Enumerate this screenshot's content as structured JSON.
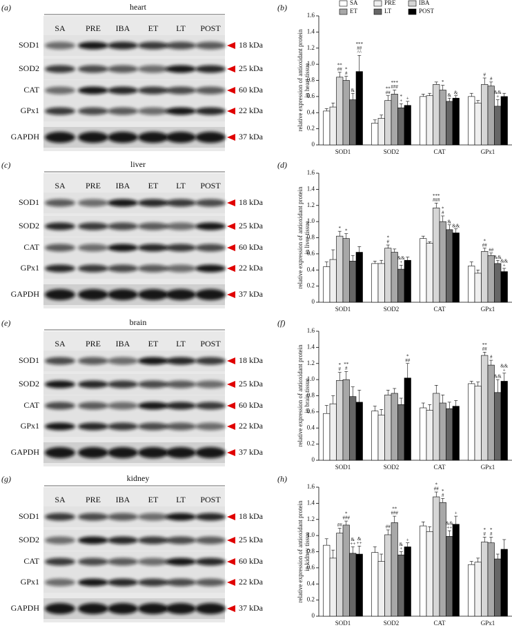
{
  "blots": [
    {
      "label": "(a)",
      "tissue": "heart"
    },
    {
      "label": "(c)",
      "tissue": "liver"
    },
    {
      "label": "(e)",
      "tissue": "brain"
    },
    {
      "label": "(g)",
      "tissue": "kidney"
    }
  ],
  "lanes": [
    "SA",
    "PRE",
    "IBA",
    "ET",
    "LT",
    "POST"
  ],
  "proteins": [
    {
      "name": "SOD1",
      "size": "18 kDa"
    },
    {
      "name": "SOD2",
      "size": "25 kDa"
    },
    {
      "name": "CAT",
      "size": "60 kDa"
    },
    {
      "name": "GPx1",
      "size": "22 kDa"
    },
    {
      "name": "GAPDH",
      "size": "37 kDa"
    }
  ],
  "chart_data": [
    {
      "type": "bar",
      "label": "(b)",
      "ylabel": [
        "relative expression of antioxidant protein",
        "in heart tissue"
      ],
      "categories": [
        "SOD1",
        "SOD2",
        "CAT",
        "GPx1"
      ],
      "ylim": [
        0,
        1.6
      ],
      "yticks": [
        0,
        0.2,
        0.4,
        0.6,
        0.8,
        {
          "value": 1,
          "label": "1.0"
        },
        1.2,
        1.4,
        1.6
      ],
      "legend": true,
      "series": [
        {
          "name": "SA",
          "color": "#ffffff",
          "values": [
            0.42,
            0.27,
            0.6,
            0.6
          ],
          "errors": [
            0.03,
            0.04,
            0.03,
            0.04
          ],
          "annotations": [
            null,
            null,
            null,
            null
          ]
        },
        {
          "name": "PRE",
          "color": "#efefef",
          "values": [
            0.47,
            0.33,
            0.61,
            0.52
          ],
          "errors": [
            0.05,
            0.04,
            0.03,
            0.03
          ],
          "annotations": [
            null,
            null,
            null,
            null
          ]
        },
        {
          "name": "IBA",
          "color": "#d6d6d6",
          "values": [
            0.84,
            0.55,
            0.75,
            0.75
          ],
          "errors": [
            0.06,
            0.06,
            0.03,
            0.08
          ],
          "annotations": [
            [
              "**",
              "##"
            ],
            [
              "**",
              "##"
            ],
            null,
            [
              "#"
            ]
          ]
        },
        {
          "name": "ET",
          "color": "#a8a8a8",
          "values": [
            0.8,
            0.63,
            0.68,
            0.73
          ],
          "errors": [
            0.05,
            0.05,
            0.06,
            0.05
          ],
          "annotations": [
            [
              "*",
              "#"
            ],
            [
              "***",
              "###"
            ],
            [
              "*"
            ],
            [
              "#"
            ]
          ]
        },
        {
          "name": "LT",
          "color": "#666666",
          "values": [
            0.56,
            0.46,
            0.54,
            0.48
          ],
          "errors": [
            0.08,
            0.05,
            0.04,
            0.08
          ],
          "annotations": [
            [
              "&"
            ],
            [
              "*",
              "+"
            ],
            [
              "&"
            ],
            [
              "&&",
              "+"
            ]
          ]
        },
        {
          "name": "POST",
          "color": "#000000",
          "values": [
            0.91,
            0.49,
            0.58,
            0.6
          ],
          "errors": [
            0.2,
            0.05,
            0.03,
            0.04
          ],
          "annotations": [
            [
              "***",
              "##",
              "^^"
            ],
            [
              "+"
            ],
            [
              "&"
            ],
            null
          ]
        }
      ]
    },
    {
      "type": "bar",
      "label": "(d)",
      "ylabel": [
        "relative expression of antioxidant protein",
        "in liver tissue"
      ],
      "categories": [
        "SOD1",
        "SOD2",
        "CAT",
        "GPx1"
      ],
      "ylim": [
        0,
        1.6
      ],
      "yticks": [
        0,
        0.2,
        0.4,
        0.6,
        0.8,
        {
          "value": 1,
          "label": "1.0"
        },
        1.2,
        1.4,
        1.6
      ],
      "legend": false,
      "series": [
        {
          "color": "#ffffff",
          "values": [
            0.44,
            0.48,
            0.79,
            0.45
          ],
          "errors": [
            0.06,
            0.03,
            0.03,
            0.05
          ],
          "annotations": [
            null,
            null,
            null,
            null
          ]
        },
        {
          "color": "#efefef",
          "values": [
            0.53,
            0.48,
            0.73,
            0.36
          ],
          "errors": [
            0.12,
            0.04,
            0.02,
            0.04
          ],
          "annotations": [
            null,
            null,
            null,
            null
          ]
        },
        {
          "color": "#d6d6d6",
          "values": [
            0.82,
            0.67,
            1.17,
            0.63
          ],
          "errors": [
            0.06,
            0.04,
            0.06,
            0.04
          ],
          "annotations": [
            [
              "*"
            ],
            [
              "*",
              "#"
            ],
            [
              "***",
              "###"
            ],
            [
              "*",
              "##"
            ]
          ]
        },
        {
          "color": "#a8a8a8",
          "values": [
            0.79,
            0.62,
            1.0,
            0.58
          ],
          "errors": [
            0.06,
            0.04,
            0.07,
            0.03
          ],
          "annotations": [
            [
              "*"
            ],
            null,
            [
              "*",
              "#"
            ],
            [
              "##"
            ]
          ]
        },
        {
          "color": "#666666",
          "values": [
            0.51,
            0.41,
            0.9,
            0.48
          ],
          "errors": [
            0.07,
            0.05,
            0.06,
            0.04
          ],
          "annotations": [
            null,
            [
              "&&",
              "+"
            ],
            [
              "&"
            ],
            [
              "&&"
            ]
          ]
        },
        {
          "color": "#000000",
          "values": [
            0.62,
            0.52,
            0.86,
            0.38
          ],
          "errors": [
            0.07,
            0.04,
            0.05,
            0.04
          ],
          "annotations": [
            null,
            null,
            [
              "&&"
            ],
            [
              "&&",
              "+"
            ]
          ]
        }
      ]
    },
    {
      "type": "bar",
      "label": "(f)",
      "ylabel": [
        "relative expression of antioxidant protein",
        "in brain tissue"
      ],
      "categories": [
        "SOD1",
        "SOD2",
        "CAT",
        "GPx1"
      ],
      "ylim": [
        0,
        1.6
      ],
      "yticks": [
        0,
        0.2,
        0.4,
        0.6,
        0.8,
        {
          "value": 1,
          "label": "1.0"
        },
        1.2,
        1.4,
        1.6
      ],
      "legend": false,
      "series": [
        {
          "color": "#ffffff",
          "values": [
            0.58,
            0.61,
            0.65,
            0.95
          ],
          "errors": [
            0.1,
            0.06,
            0.06,
            0.03
          ],
          "annotations": [
            null,
            null,
            null,
            null
          ]
        },
        {
          "color": "#efefef",
          "values": [
            0.7,
            0.56,
            0.62,
            0.92
          ],
          "errors": [
            0.1,
            0.07,
            0.07,
            0.05
          ],
          "annotations": [
            null,
            null,
            null,
            null
          ]
        },
        {
          "color": "#d6d6d6",
          "values": [
            0.99,
            0.81,
            0.83,
            1.3
          ],
          "errors": [
            0.1,
            0.06,
            0.1,
            0.04
          ],
          "annotations": [
            [
              "*",
              "#"
            ],
            null,
            null,
            [
              "**",
              "##"
            ]
          ]
        },
        {
          "color": "#a8a8a8",
          "values": [
            1.0,
            0.83,
            0.71,
            1.18
          ],
          "errors": [
            0.1,
            0.06,
            0.1,
            0.06
          ],
          "annotations": [
            [
              "**",
              "#"
            ],
            null,
            null,
            [
              "#"
            ]
          ]
        },
        {
          "color": "#666666",
          "values": [
            0.79,
            0.69,
            0.64,
            0.84
          ],
          "errors": [
            0.12,
            0.08,
            0.08,
            0.16
          ],
          "annotations": [
            null,
            null,
            null,
            [
              "&&"
            ]
          ]
        },
        {
          "color": "#000000",
          "values": [
            0.72,
            1.02,
            0.67,
            0.98
          ],
          "errors": [
            0.15,
            0.18,
            0.07,
            0.1
          ],
          "annotations": [
            null,
            [
              "*",
              "##"
            ],
            null,
            [
              "&&",
              "+"
            ]
          ]
        }
      ]
    },
    {
      "type": "bar",
      "label": "(h)",
      "ylabel": [
        "relative expression of antioxidant protein",
        "in kidney tissue"
      ],
      "categories": [
        "SOD1",
        "SOD2",
        "CAT",
        "GPx1"
      ],
      "ylim": [
        0,
        1.6
      ],
      "yticks": [
        0,
        0.2,
        0.4,
        0.6,
        0.8,
        {
          "value": 1,
          "label": "1.0"
        },
        1.2,
        1.4,
        1.6
      ],
      "legend": false,
      "series": [
        {
          "color": "#ffffff",
          "values": [
            0.88,
            0.79,
            1.12,
            0.64
          ],
          "errors": [
            0.08,
            0.07,
            0.05,
            0.04
          ],
          "annotations": [
            null,
            null,
            null,
            null
          ]
        },
        {
          "color": "#efefef",
          "values": [
            0.72,
            0.68,
            1.05,
            0.67
          ],
          "errors": [
            0.1,
            0.09,
            0.06,
            0.05
          ],
          "annotations": [
            null,
            null,
            null,
            null
          ]
        },
        {
          "color": "#d6d6d6",
          "values": [
            1.03,
            1.01,
            1.48,
            0.92
          ],
          "errors": [
            0.06,
            0.06,
            0.06,
            0.06
          ],
          "annotations": [
            [
              "##"
            ],
            [
              "##"
            ],
            [
              "*",
              "##"
            ],
            [
              "*",
              "#"
            ]
          ]
        },
        {
          "color": "#a8a8a8",
          "values": [
            1.13,
            1.16,
            1.41,
            0.91
          ],
          "errors": [
            0.05,
            0.08,
            0.05,
            0.07
          ],
          "annotations": [
            [
              "*",
              "###"
            ],
            [
              "**",
              "###"
            ],
            [
              "*",
              "#"
            ],
            [
              "*",
              "#"
            ]
          ]
        },
        {
          "color": "#666666",
          "values": [
            0.78,
            0.76,
            0.99,
            0.71
          ],
          "errors": [
            0.08,
            0.04,
            0.07,
            0.06
          ],
          "annotations": [
            [
              "&",
              "++"
            ],
            [
              "&",
              "+"
            ],
            [
              "&&",
              "++"
            ],
            null
          ]
        },
        {
          "color": "#000000",
          "values": [
            0.77,
            0.86,
            1.14,
            0.83
          ],
          "errors": [
            0.1,
            0.05,
            0.1,
            0.12
          ],
          "annotations": [
            [
              "&",
              "++"
            ],
            [
              "+"
            ],
            [
              "+"
            ],
            null
          ]
        }
      ]
    }
  ]
}
